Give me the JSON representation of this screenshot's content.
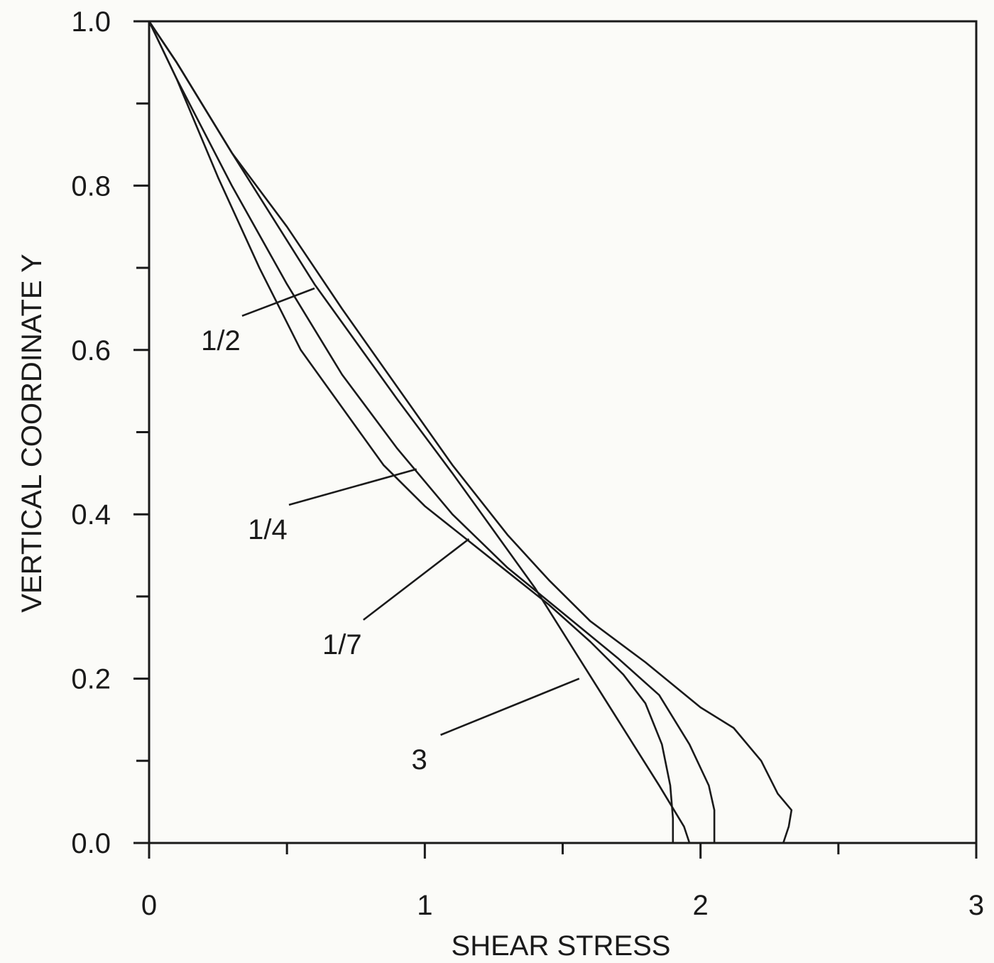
{
  "chart_data": {
    "type": "line",
    "title": "",
    "xlabel": "SHEAR STRESS",
    "ylabel": "VERTICAL COORDINATE Y",
    "xlim": [
      0,
      3
    ],
    "ylim": [
      0,
      1
    ],
    "x_ticks": [
      "0",
      "1",
      "2",
      "3"
    ],
    "y_ticks": [
      "0.0",
      "0.2",
      "0.4",
      "0.6",
      "0.8",
      "1.0"
    ],
    "grid": false,
    "series": [
      {
        "name": "1/2",
        "label_anchor": [
          0.6,
          0.675
        ],
        "label_text_pos": [
          0.26,
          0.6
        ],
        "points": [
          [
            0,
            1.0
          ],
          [
            0.1,
            0.95
          ],
          [
            0.3,
            0.84
          ],
          [
            0.5,
            0.75
          ],
          [
            0.7,
            0.65
          ],
          [
            0.9,
            0.555
          ],
          [
            1.1,
            0.46
          ],
          [
            1.3,
            0.375
          ],
          [
            1.45,
            0.32
          ],
          [
            1.6,
            0.27
          ],
          [
            1.8,
            0.22
          ],
          [
            2.0,
            0.165
          ],
          [
            2.12,
            0.14
          ],
          [
            2.22,
            0.1
          ],
          [
            2.28,
            0.06
          ],
          [
            2.33,
            0.04
          ],
          [
            2.32,
            0.02
          ],
          [
            2.3,
            0.0
          ]
        ]
      },
      {
        "name": "1/4",
        "label_anchor": [
          0.97,
          0.455
        ],
        "label_text_pos": [
          0.43,
          0.37
        ],
        "points": [
          [
            0,
            1.0
          ],
          [
            0.1,
            0.93
          ],
          [
            0.3,
            0.8
          ],
          [
            0.5,
            0.68
          ],
          [
            0.7,
            0.57
          ],
          [
            0.9,
            0.48
          ],
          [
            1.1,
            0.4
          ],
          [
            1.3,
            0.335
          ],
          [
            1.5,
            0.28
          ],
          [
            1.7,
            0.225
          ],
          [
            1.85,
            0.18
          ],
          [
            1.96,
            0.12
          ],
          [
            2.03,
            0.07
          ],
          [
            2.05,
            0.04
          ],
          [
            2.05,
            0.0
          ]
        ]
      },
      {
        "name": "1/7",
        "label_anchor": [
          1.16,
          0.37
        ],
        "label_text_pos": [
          0.7,
          0.23
        ],
        "points": [
          [
            0,
            1.0
          ],
          [
            0.1,
            0.93
          ],
          [
            0.25,
            0.81
          ],
          [
            0.4,
            0.7
          ],
          [
            0.55,
            0.6
          ],
          [
            0.7,
            0.53
          ],
          [
            0.85,
            0.46
          ],
          [
            1.0,
            0.41
          ],
          [
            1.15,
            0.37
          ],
          [
            1.3,
            0.33
          ],
          [
            1.45,
            0.29
          ],
          [
            1.6,
            0.245
          ],
          [
            1.72,
            0.205
          ],
          [
            1.8,
            0.17
          ],
          [
            1.86,
            0.12
          ],
          [
            1.89,
            0.07
          ],
          [
            1.9,
            0.03
          ],
          [
            1.9,
            0.0
          ]
        ]
      },
      {
        "name": "3",
        "label_anchor": [
          1.56,
          0.2
        ],
        "label_text_pos": [
          0.98,
          0.09
        ],
        "points": [
          [
            0,
            1.0
          ],
          [
            0.1,
            0.95
          ],
          [
            0.3,
            0.84
          ],
          [
            0.6,
            0.68
          ],
          [
            0.9,
            0.54
          ],
          [
            1.1,
            0.45
          ],
          [
            1.25,
            0.38
          ],
          [
            1.4,
            0.31
          ],
          [
            1.55,
            0.23
          ],
          [
            1.7,
            0.15
          ],
          [
            1.85,
            0.07
          ],
          [
            1.94,
            0.02
          ],
          [
            1.96,
            0.0
          ]
        ]
      }
    ]
  }
}
